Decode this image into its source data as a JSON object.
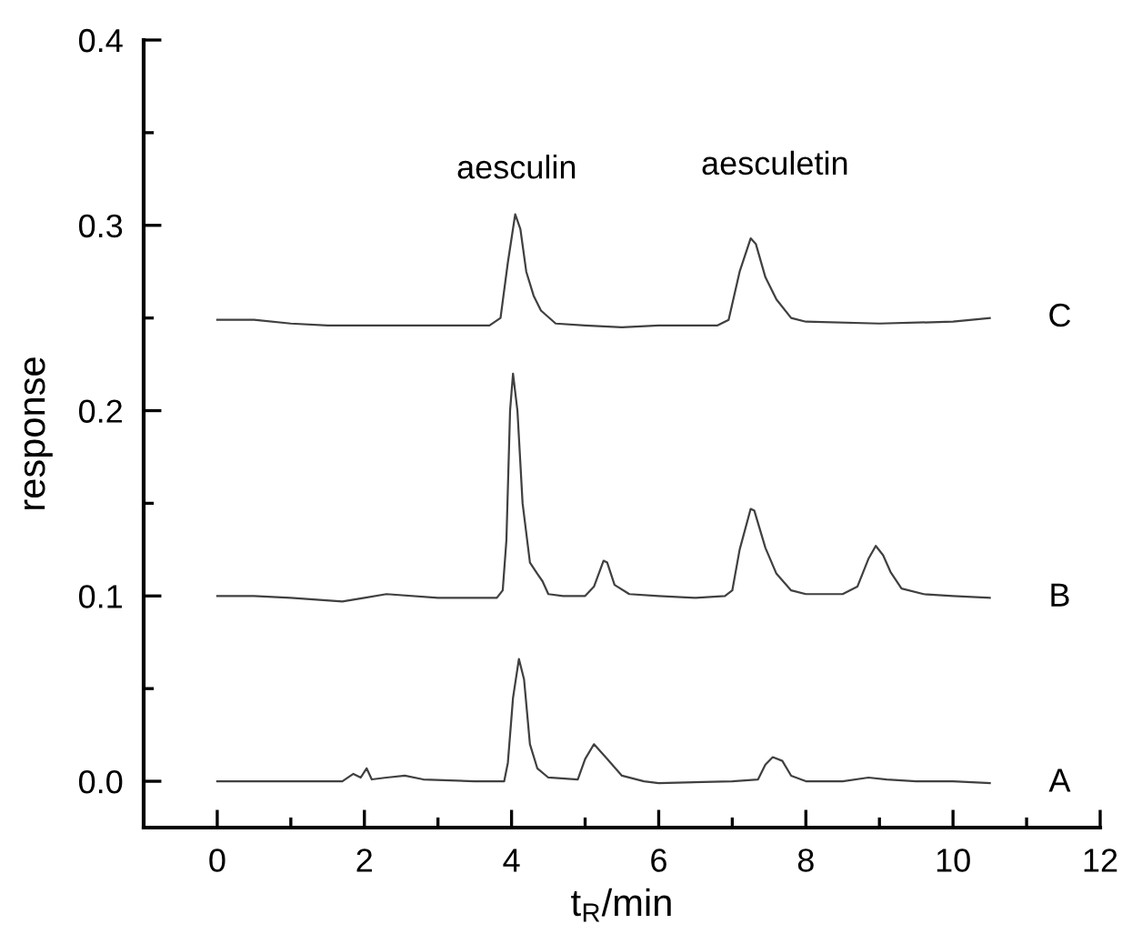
{
  "chart_data": {
    "type": "line",
    "xlabel": "t$_{R}$/min",
    "ylabel": "response",
    "xlim": [
      -1,
      12
    ],
    "ylim": [
      -0.025,
      0.4
    ],
    "xticks": [
      0,
      {
        "value": 1,
        "label": null
      },
      2,
      {
        "value": 3,
        "label": null
      },
      4,
      {
        "value": 5,
        "label": null
      },
      6,
      {
        "value": 7,
        "label": null
      },
      8,
      {
        "value": 9,
        "label": null
      },
      10,
      {
        "value": 11,
        "label": null
      },
      12
    ],
    "yticks": [
      {
        "value": 0,
        "label": "0.0"
      },
      {
        "value": 0.05,
        "label": null
      },
      0.1,
      {
        "value": 0.15,
        "label": null
      },
      0.2,
      {
        "value": 0.25,
        "label": null
      },
      0.3,
      {
        "value": 0.35,
        "label": null
      },
      0.4
    ],
    "grid": false,
    "legend": false,
    "marker": "none",
    "line_style": "solid",
    "annotations": [
      "aesculin",
      "aesculetin"
    ],
    "series": [
      {
        "name": "C",
        "color": "#404040",
        "x": [
          0,
          0.5,
          1,
          1.5,
          2,
          3,
          3.7,
          3.85,
          3.95,
          4.05,
          4.12,
          4.2,
          4.3,
          4.4,
          4.6,
          5,
          5.5,
          6,
          6.8,
          6.95,
          7.1,
          7.25,
          7.32,
          7.45,
          7.6,
          7.8,
          8,
          9,
          10,
          10.5
        ],
        "values": [
          0.249,
          0.249,
          0.247,
          0.246,
          0.246,
          0.246,
          0.246,
          0.25,
          0.28,
          0.306,
          0.298,
          0.275,
          0.262,
          0.254,
          0.247,
          0.246,
          0.245,
          0.246,
          0.246,
          0.249,
          0.275,
          0.293,
          0.29,
          0.272,
          0.26,
          0.25,
          0.248,
          0.247,
          0.248,
          0.25
        ]
      },
      {
        "name": "B",
        "color": "#404040",
        "x": [
          0,
          0.5,
          1,
          1.7,
          2,
          2.3,
          3,
          3.8,
          3.88,
          3.93,
          3.98,
          4.02,
          4.08,
          4.15,
          4.25,
          4.35,
          4.42,
          4.5,
          4.7,
          5,
          5.12,
          5.25,
          5.3,
          5.4,
          5.6,
          6,
          6.5,
          6.9,
          7,
          7.1,
          7.25,
          7.3,
          7.45,
          7.6,
          7.8,
          8,
          8.5,
          8.7,
          8.85,
          8.95,
          9.05,
          9.15,
          9.3,
          9.6,
          10,
          10.5
        ],
        "values": [
          0.1,
          0.1,
          0.099,
          0.097,
          0.099,
          0.101,
          0.099,
          0.099,
          0.103,
          0.13,
          0.2,
          0.22,
          0.2,
          0.15,
          0.118,
          0.112,
          0.108,
          0.101,
          0.1,
          0.1,
          0.105,
          0.119,
          0.118,
          0.106,
          0.101,
          0.1,
          0.099,
          0.1,
          0.103,
          0.125,
          0.147,
          0.146,
          0.126,
          0.112,
          0.103,
          0.101,
          0.101,
          0.105,
          0.12,
          0.127,
          0.122,
          0.113,
          0.104,
          0.101,
          0.1,
          0.099
        ]
      },
      {
        "name": "A",
        "color": "#404040",
        "x": [
          0,
          1,
          1.7,
          1.85,
          1.95,
          2.03,
          2.1,
          2.3,
          2.55,
          2.8,
          3.5,
          3.9,
          3.95,
          4.02,
          4.1,
          4.17,
          4.25,
          4.35,
          4.5,
          4.9,
          5,
          5.12,
          5.3,
          5.5,
          5.8,
          6,
          7,
          7.35,
          7.45,
          7.55,
          7.68,
          7.8,
          8,
          8.5,
          8.85,
          9.1,
          9.5,
          10,
          10.5
        ],
        "values": [
          0,
          0,
          0,
          0.004,
          0.002,
          0.007,
          0.001,
          0.002,
          0.003,
          0.001,
          0,
          0,
          0.01,
          0.045,
          0.066,
          0.055,
          0.02,
          0.007,
          0.002,
          0.001,
          0.012,
          0.02,
          0.012,
          0.003,
          0,
          -0.001,
          0,
          0.001,
          0.009,
          0.013,
          0.011,
          0.003,
          0,
          0,
          0.002,
          0.001,
          0,
          0,
          -0.001
        ]
      }
    ]
  }
}
